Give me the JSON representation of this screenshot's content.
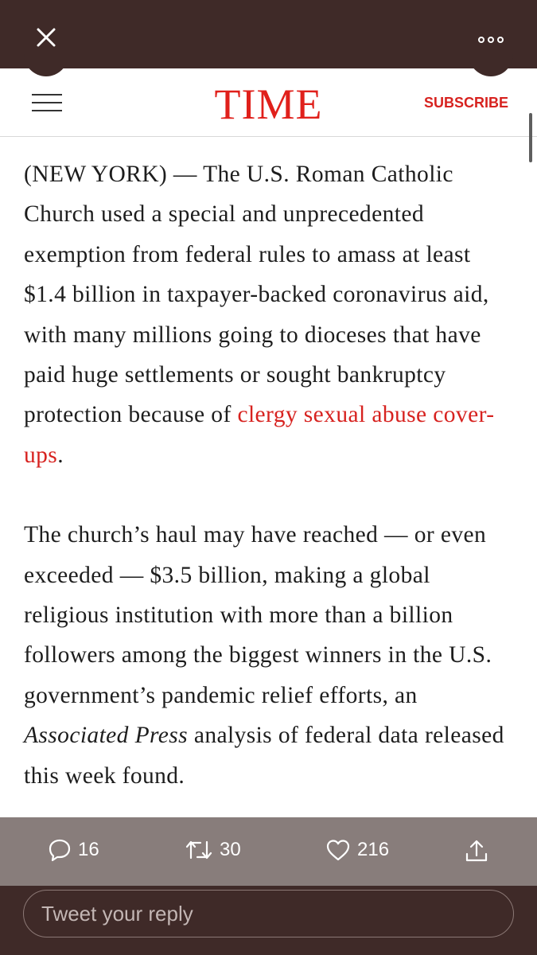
{
  "overlay": {
    "close_icon": "close-icon",
    "more_icon": "more-icon"
  },
  "header": {
    "menu_icon": "hamburger-menu-icon",
    "logo": "TIME",
    "subscribe_label": "SUBSCRIBE",
    "accent_color": "#e0201b"
  },
  "article": {
    "p1_before": "(NEW YORK) — The U.S. Roman Catholic Church used a special and unprecedented exemption from federal rules to amass at least $1.4 billion in taxpayer-backed coronavirus aid, with many millions going to dioceses that have paid huge settlements or sought bankruptcy protection because of ",
    "p1_link": "clergy sexual abuse cover-ups",
    "p1_after": ".",
    "p2_before": "The church’s haul may have reached — or even exceeded — $3.5 billion, making a global religious institution with more than a billion followers among the biggest winners in the U.S. government’s pandemic relief efforts, an ",
    "p2_italic": "Associated Press",
    "p2_after": " analysis of federal data released this week found."
  },
  "actions": {
    "replies": "16",
    "retweets": "30",
    "likes": "216",
    "reply_icon": "comment-icon",
    "retweet_icon": "retweet-icon",
    "like_icon": "heart-icon",
    "share_icon": "share-icon"
  },
  "reply": {
    "placeholder": "Tweet your reply"
  },
  "colors": {
    "frame": "#3f2a28",
    "link": "#d7221f"
  }
}
